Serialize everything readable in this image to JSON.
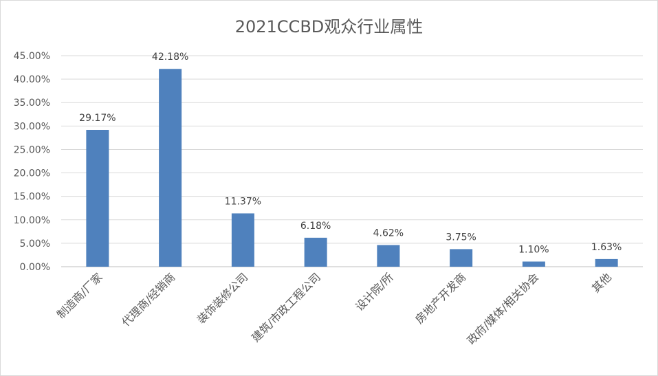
{
  "chart_data": {
    "type": "bar",
    "title": "2021CCBD观众行业属性",
    "categories": [
      "制造商/厂家",
      "代理商/经销商",
      "装饰装修公司",
      "建筑/市政工程公司",
      "设计院/所",
      "房地产开发商",
      "政府/媒体/相关协会",
      "其他"
    ],
    "values": [
      29.17,
      42.18,
      11.37,
      6.18,
      4.62,
      3.75,
      1.1,
      1.63
    ],
    "value_labels": [
      "29.17%",
      "42.18%",
      "11.37%",
      "6.18%",
      "4.62%",
      "3.75%",
      "1.10%",
      "1.63%"
    ],
    "ylim": [
      0,
      45
    ],
    "yticks": [
      0,
      5,
      10,
      15,
      20,
      25,
      30,
      35,
      40,
      45
    ],
    "ytick_labels": [
      "0.00%",
      "5.00%",
      "10.00%",
      "15.00%",
      "20.00%",
      "25.00%",
      "30.00%",
      "35.00%",
      "40.00%",
      "45.00%"
    ],
    "xlabel": "",
    "ylabel": "",
    "grid": true,
    "legend": "none",
    "bar_color": "#4F81BD",
    "grid_color": "#D9D9D9"
  }
}
